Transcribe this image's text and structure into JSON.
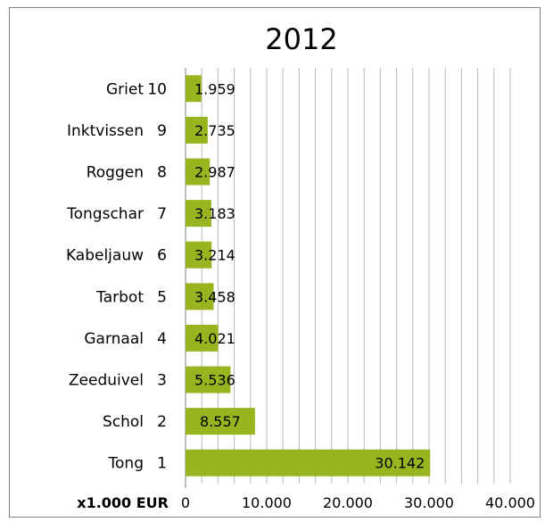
{
  "chart_data": {
    "type": "bar",
    "orientation": "horizontal",
    "title": "2012",
    "xlabel": "x1.000 EUR",
    "xlim": [
      0,
      40000
    ],
    "x_ticks": [
      0,
      10000,
      20000,
      30000,
      40000
    ],
    "x_tick_labels": [
      "0",
      "10.000",
      "20.000",
      "30.000",
      "40.000"
    ],
    "grid": "vertical gridlines every 2.000",
    "legend": "none",
    "bar_color": "#98b520",
    "categories": [
      {
        "name": "Tong",
        "rank": "1"
      },
      {
        "name": "Schol",
        "rank": "2"
      },
      {
        "name": "Zeeduivel",
        "rank": "3"
      },
      {
        "name": "Garnaal",
        "rank": "4"
      },
      {
        "name": "Tarbot",
        "rank": "5"
      },
      {
        "name": "Kabeljauw",
        "rank": "6"
      },
      {
        "name": "Tongschar",
        "rank": "7"
      },
      {
        "name": "Roggen",
        "rank": "8"
      },
      {
        "name": "Inktvissen",
        "rank": "9"
      },
      {
        "name": "Griet",
        "rank": "10"
      }
    ],
    "values": [
      30142,
      8557,
      5536,
      4021,
      3458,
      3214,
      3183,
      2987,
      2735,
      1959
    ],
    "value_labels": [
      "30.142",
      "8.557",
      "5.536",
      "4.021",
      "3.458",
      "3.214",
      "3.183",
      "2.987",
      "2.735",
      "1.959"
    ]
  }
}
